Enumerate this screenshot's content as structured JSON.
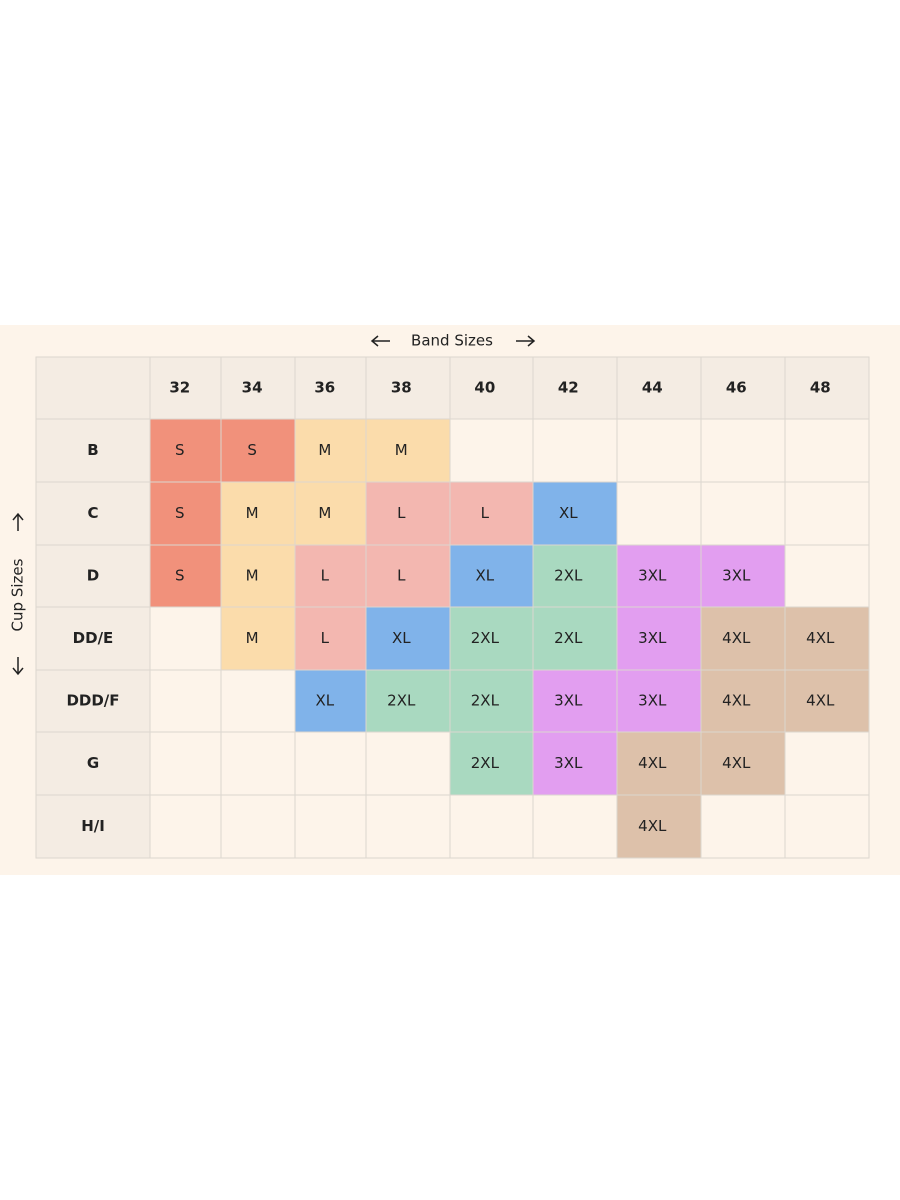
{
  "table": {
    "band_label": "Band Sizes",
    "cup_label": "Cup Sizes",
    "columns": [
      "32",
      "34",
      "36",
      "38",
      "40",
      "42",
      "44",
      "46",
      "48"
    ],
    "rows": [
      {
        "label": "B",
        "cells": [
          "S",
          "S",
          "M",
          "M",
          null,
          null,
          null,
          null,
          null
        ],
        "colors": [
          "#f1917b",
          "#f1917b",
          "#fbdcab",
          "#fbdcab",
          null,
          null,
          null,
          null,
          null
        ]
      },
      {
        "label": "C",
        "cells": [
          "S",
          "M",
          "M",
          "L",
          "L",
          "XL",
          null,
          null,
          null
        ],
        "colors": [
          "#f1917b",
          "#fbdcab",
          "#fbdcab",
          "#f3b7b0",
          "#f3b7b0",
          "#80b3ea",
          null,
          null,
          null
        ]
      },
      {
        "label": "D",
        "cells": [
          "S",
          "M",
          "L",
          "L",
          "XL",
          "2XL",
          "3XL",
          "3XL",
          null
        ],
        "colors": [
          "#f1917b",
          "#fbdcab",
          "#f3b7b0",
          "#f3b7b0",
          "#80b3ea",
          "#a9d9c0",
          "#e29ef0",
          "#e29ef0",
          null
        ]
      },
      {
        "label": "DD/E",
        "cells": [
          null,
          "M",
          "L",
          "XL",
          "2XL",
          "2XL",
          "3XL",
          "4XL",
          "4XL"
        ],
        "colors": [
          null,
          "#fbdcab",
          "#f3b7b0",
          "#80b3ea",
          "#a9d9c0",
          "#a9d9c0",
          "#e29ef0",
          "#ddc1aa",
          "#ddc1aa"
        ]
      },
      {
        "label": "DDD/F",
        "cells": [
          null,
          null,
          "XL",
          "2XL",
          "2XL",
          "3XL",
          "3XL",
          "4XL",
          "4XL"
        ],
        "colors": [
          null,
          null,
          "#80b3ea",
          "#a9d9c0",
          "#a9d9c0",
          "#e29ef0",
          "#e29ef0",
          "#ddc1aa",
          "#ddc1aa"
        ]
      },
      {
        "label": "G",
        "cells": [
          null,
          null,
          null,
          null,
          "2XL",
          "3XL",
          "4XL",
          "4XL",
          null
        ],
        "colors": [
          null,
          null,
          null,
          null,
          "#a9d9c0",
          "#e29ef0",
          "#ddc1aa",
          "#ddc1aa",
          null
        ]
      },
      {
        "label": "H/I",
        "cells": [
          null,
          null,
          null,
          null,
          null,
          null,
          "4XL",
          null,
          null
        ],
        "colors": [
          null,
          null,
          null,
          null,
          null,
          null,
          "#ddc1aa",
          null,
          null
        ]
      }
    ]
  }
}
